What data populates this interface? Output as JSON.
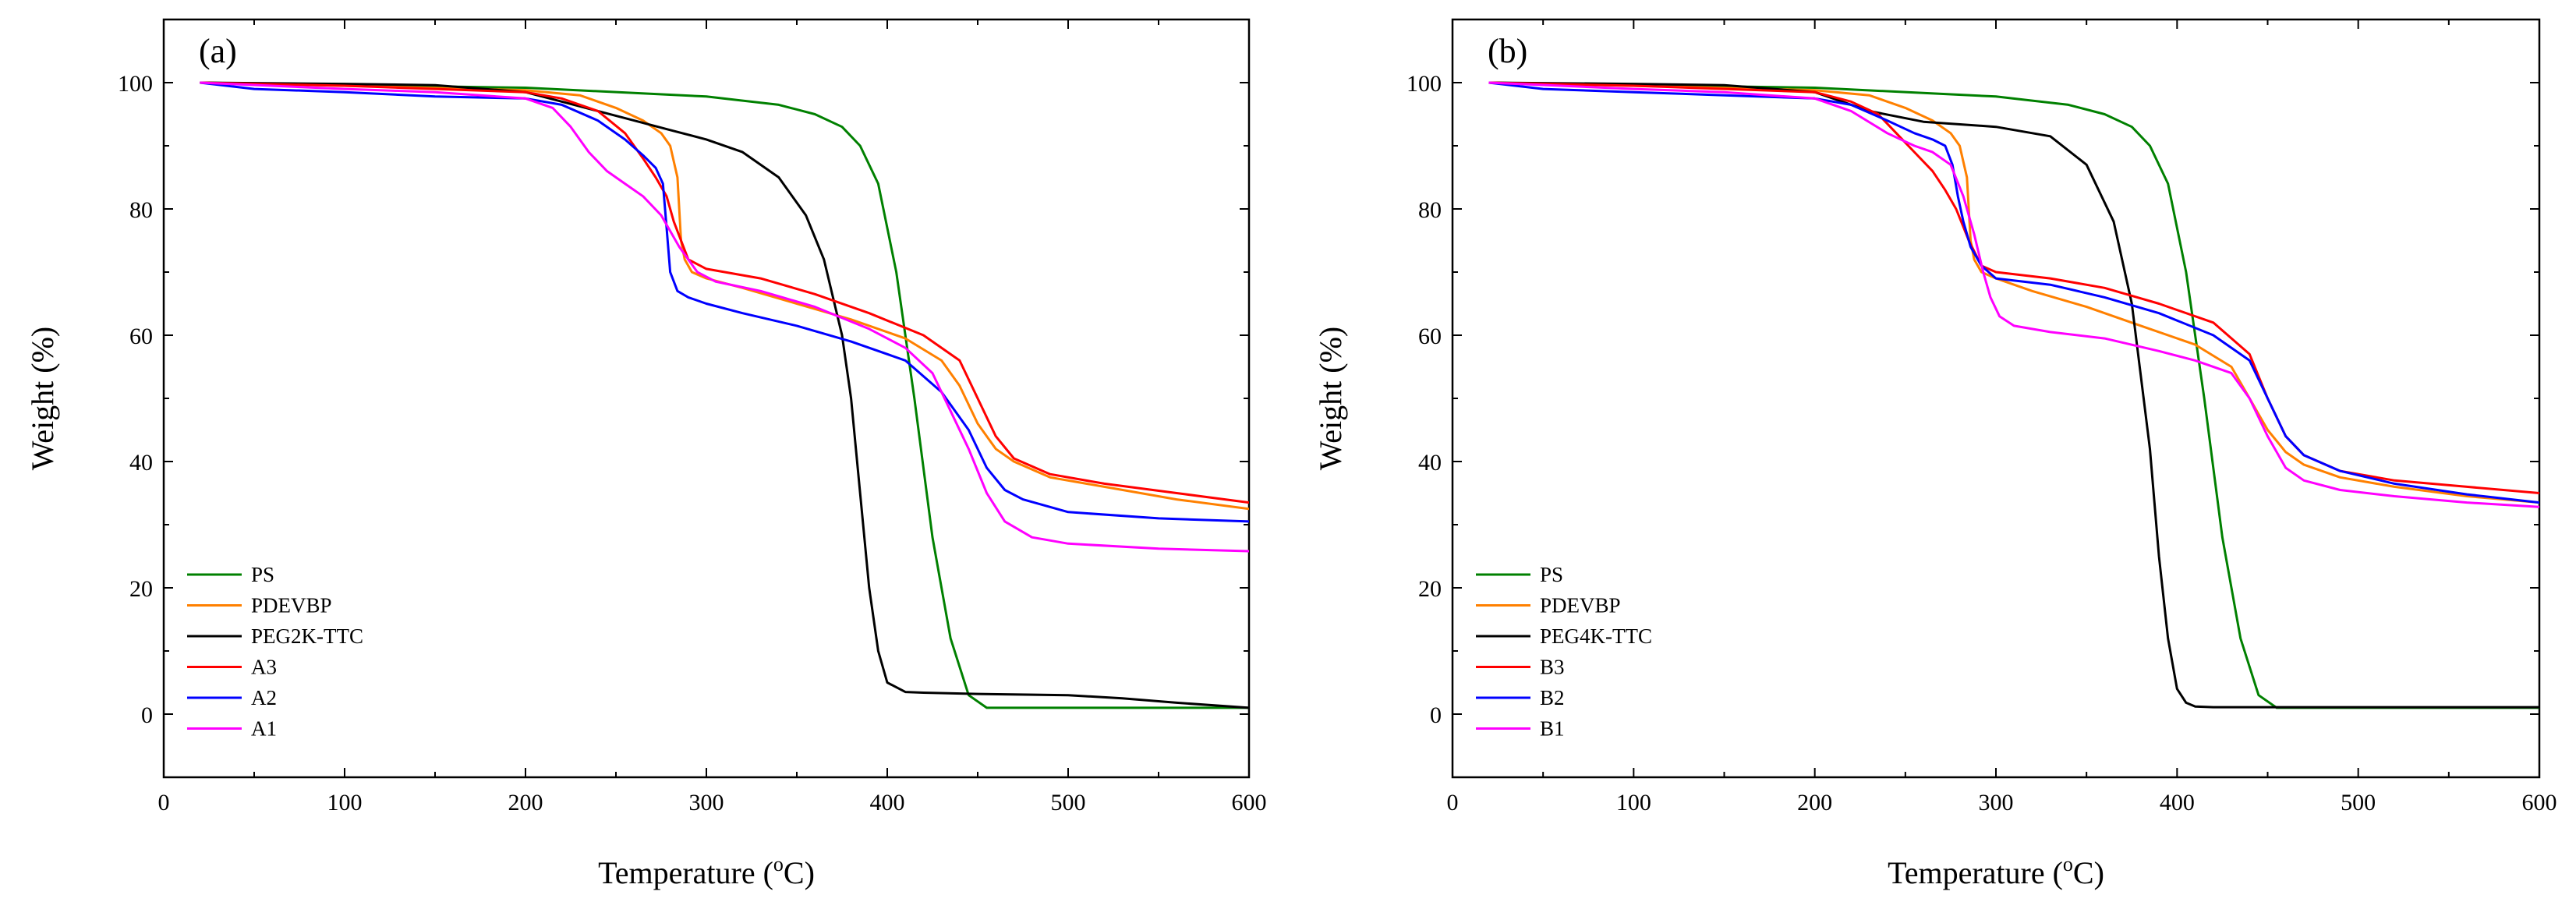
{
  "figure": {
    "caption_units": "oC",
    "superscript": "o",
    "unit_letter": "C"
  },
  "chart_data": [
    {
      "type": "line",
      "panel_label": "(a)",
      "xlabel_prefix": "Temperature (",
      "xlabel_suffix": ")",
      "ylabel": "Weight (%)",
      "xlim": [
        0,
        600
      ],
      "ylim": [
        -10,
        110
      ],
      "xticks": [
        0,
        100,
        200,
        300,
        400,
        500,
        600
      ],
      "yticks": [
        0,
        20,
        40,
        60,
        80,
        100
      ],
      "grid": false,
      "legend_position": "bottom-left",
      "series": [
        {
          "name": "PS",
          "color": "#008000",
          "x": [
            20,
            100,
            200,
            300,
            340,
            360,
            375,
            385,
            395,
            405,
            415,
            425,
            435,
            445,
            455,
            470,
            600
          ],
          "y": [
            100,
            99.6,
            99.2,
            97.8,
            96.5,
            95,
            93,
            90,
            84,
            70,
            50,
            28,
            12,
            3,
            1,
            1,
            1
          ]
        },
        {
          "name": "PDEVBP",
          "color": "#FF8000",
          "x": [
            20,
            100,
            200,
            230,
            250,
            265,
            275,
            280,
            284,
            286,
            288,
            292,
            300,
            320,
            350,
            380,
            410,
            430,
            440,
            450,
            460,
            470,
            490,
            520,
            560,
            600
          ],
          "y": [
            100,
            99.5,
            98.8,
            98,
            96,
            94,
            92,
            90,
            85,
            75,
            72,
            70,
            69,
            67.5,
            65,
            62.5,
            59.5,
            56,
            52,
            46,
            42,
            40,
            37.5,
            36,
            34,
            32.5
          ]
        },
        {
          "name": "PEG2K-TTC",
          "color": "#000000",
          "x": [
            20,
            100,
            150,
            200,
            220,
            240,
            260,
            280,
            300,
            320,
            340,
            355,
            365,
            375,
            380,
            385,
            390,
            395,
            400,
            410,
            420,
            450,
            500,
            530,
            560,
            600
          ],
          "y": [
            100,
            99.8,
            99.6,
            98.5,
            97,
            95.5,
            94,
            92.5,
            91,
            89,
            85,
            79,
            72,
            60,
            50,
            35,
            20,
            10,
            5,
            3.5,
            3.4,
            3.2,
            3,
            2.5,
            1.8,
            1
          ]
        },
        {
          "name": "A3",
          "color": "#FF0000",
          "x": [
            20,
            100,
            200,
            220,
            240,
            255,
            265,
            272,
            278,
            282,
            286,
            290,
            300,
            330,
            360,
            390,
            420,
            440,
            450,
            460,
            470,
            490,
            520,
            560,
            600
          ],
          "y": [
            100,
            99.5,
            98.5,
            97.5,
            95.5,
            92,
            88,
            85,
            82,
            78,
            75,
            72,
            70.5,
            69,
            66.5,
            63.5,
            60,
            56,
            50,
            44,
            40.5,
            38,
            36.5,
            35,
            33.5
          ]
        },
        {
          "name": "A2",
          "color": "#0000FF",
          "x": [
            20,
            50,
            100,
            150,
            200,
            220,
            240,
            255,
            265,
            272,
            276,
            278,
            280,
            284,
            290,
            300,
            320,
            350,
            380,
            410,
            430,
            445,
            455,
            465,
            475,
            500,
            550,
            600
          ],
          "y": [
            100,
            99,
            98.5,
            97.8,
            97.5,
            96.5,
            94,
            91,
            88.5,
            86.5,
            84,
            77,
            70,
            67,
            66,
            65,
            63.5,
            61.5,
            59,
            56,
            51,
            45,
            39,
            35.5,
            34,
            32,
            31,
            30.5
          ]
        },
        {
          "name": "A1",
          "color": "#FF00FF",
          "x": [
            20,
            100,
            150,
            200,
            215,
            225,
            235,
            245,
            255,
            265,
            275,
            285,
            295,
            305,
            330,
            360,
            390,
            410,
            425,
            435,
            445,
            455,
            465,
            480,
            500,
            550,
            600
          ],
          "y": [
            100,
            99,
            98.5,
            97.5,
            96,
            93,
            89,
            86,
            84,
            82,
            79,
            74,
            70,
            68.5,
            67,
            64.5,
            61,
            58,
            54,
            48,
            42,
            35,
            30.5,
            28,
            27,
            26.2,
            25.8
          ]
        }
      ]
    },
    {
      "type": "line",
      "panel_label": "(b)",
      "xlabel_prefix": "Temperature (",
      "xlabel_suffix": ")",
      "ylabel": "Weight (%)",
      "xlim": [
        0,
        600
      ],
      "ylim": [
        -10,
        110
      ],
      "xticks": [
        0,
        100,
        200,
        300,
        400,
        500,
        600
      ],
      "yticks": [
        0,
        20,
        40,
        60,
        80,
        100
      ],
      "grid": false,
      "legend_position": "bottom-left",
      "series": [
        {
          "name": "PS",
          "color": "#008000",
          "x": [
            20,
            100,
            200,
            300,
            340,
            360,
            375,
            385,
            395,
            405,
            415,
            425,
            435,
            445,
            455,
            470,
            600
          ],
          "y": [
            100,
            99.6,
            99.2,
            97.8,
            96.5,
            95,
            93,
            90,
            84,
            70,
            50,
            28,
            12,
            3,
            1,
            1,
            1
          ]
        },
        {
          "name": "PDEVBP",
          "color": "#FF8000",
          "x": [
            20,
            100,
            200,
            230,
            250,
            265,
            275,
            280,
            284,
            286,
            288,
            292,
            300,
            320,
            350,
            380,
            410,
            430,
            440,
            450,
            460,
            470,
            490,
            520,
            560,
            600
          ],
          "y": [
            100,
            99.5,
            98.8,
            98,
            96,
            94,
            92,
            90,
            85,
            75,
            72,
            70,
            69,
            67,
            64.5,
            61.5,
            58.5,
            55,
            50,
            45,
            41.5,
            39.5,
            37.5,
            36,
            34.5,
            33.5
          ]
        },
        {
          "name": "PEG4K-TTC",
          "color": "#000000",
          "x": [
            20,
            100,
            150,
            200,
            230,
            260,
            300,
            330,
            350,
            365,
            375,
            385,
            390,
            395,
            400,
            405,
            410,
            420,
            450,
            500,
            600
          ],
          "y": [
            100,
            99.8,
            99.6,
            98.5,
            95.5,
            93.8,
            93,
            91.5,
            87,
            78,
            65,
            42,
            25,
            12,
            4,
            1.8,
            1.2,
            1.1,
            1.1,
            1.1,
            1.1
          ]
        },
        {
          "name": "B3",
          "color": "#FF0000",
          "x": [
            20,
            100,
            200,
            220,
            235,
            245,
            255,
            265,
            272,
            278,
            285,
            292,
            300,
            330,
            360,
            390,
            420,
            440,
            450,
            460,
            470,
            490,
            520,
            560,
            600
          ],
          "y": [
            100,
            99.5,
            98.5,
            97,
            95,
            92,
            89,
            86,
            83,
            80,
            75,
            71,
            70,
            69,
            67.5,
            65,
            62,
            57,
            50,
            44,
            41,
            38.5,
            37,
            36,
            35
          ]
        },
        {
          "name": "B2",
          "color": "#0000FF",
          "x": [
            20,
            50,
            100,
            150,
            200,
            220,
            240,
            255,
            265,
            272,
            276,
            279,
            282,
            286,
            292,
            300,
            330,
            360,
            390,
            420,
            440,
            450,
            460,
            470,
            490,
            520,
            560,
            600
          ],
          "y": [
            100,
            99,
            98.5,
            98,
            97.5,
            96.5,
            94,
            92,
            91,
            90,
            87,
            82,
            78,
            74,
            71,
            69,
            68,
            66,
            63.5,
            60,
            56,
            50,
            44,
            41,
            38.5,
            36.5,
            34.8,
            33.5
          ]
        },
        {
          "name": "B1",
          "color": "#FF00FF",
          "x": [
            20,
            100,
            150,
            200,
            220,
            240,
            255,
            265,
            275,
            282,
            288,
            293,
            297,
            302,
            310,
            330,
            360,
            390,
            410,
            430,
            440,
            450,
            460,
            470,
            490,
            520,
            560,
            600
          ],
          "y": [
            100,
            99,
            98.5,
            97.5,
            95.5,
            92,
            90,
            89,
            87,
            82,
            76,
            70,
            66,
            63,
            61.5,
            60.5,
            59.5,
            57.5,
            56,
            54,
            50,
            44,
            39,
            37,
            35.5,
            34.5,
            33.5,
            32.8
          ]
        }
      ]
    }
  ]
}
